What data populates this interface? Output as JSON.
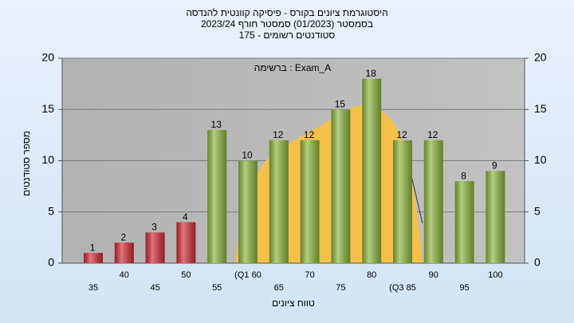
{
  "chart_data": {
    "type": "bar",
    "title": [
      "היסטוגרמת ציונים בקורס - פיסיקה קוונטית להנדסה",
      "בסמסטר (01/2023) סמסטר חורף 2023/24",
      "סטודנטים רשומים - 175"
    ],
    "annotation": "ברשימה : Exam_A",
    "x_label": "טווח ציונים",
    "y_label": "מספר סטודנטים",
    "categories": [
      "35",
      "40",
      "45",
      "50",
      "55",
      "(Q1 60",
      "65",
      "70",
      "75",
      "80",
      "(Q3 85",
      "90",
      "95",
      "100"
    ],
    "values": [
      1,
      2,
      3,
      4,
      13,
      10,
      12,
      12,
      15,
      18,
      12,
      12,
      8,
      9
    ],
    "colors": [
      "#d42a34",
      "#d42a34",
      "#d42a34",
      "#d42a34",
      "#8db53c",
      "#8db53c",
      "#8db53c",
      "#8db53c",
      "#8db53c",
      "#8db53c",
      "#8db53c",
      "#8db53c",
      "#8db53c",
      "#8db53c"
    ],
    "ylim": [
      0,
      20
    ],
    "yticks": [
      0,
      5,
      10,
      15,
      20
    ],
    "y2lim": [
      0,
      20
    ],
    "y2ticks": [
      0,
      5,
      10,
      15,
      20
    ],
    "grid": true
  }
}
